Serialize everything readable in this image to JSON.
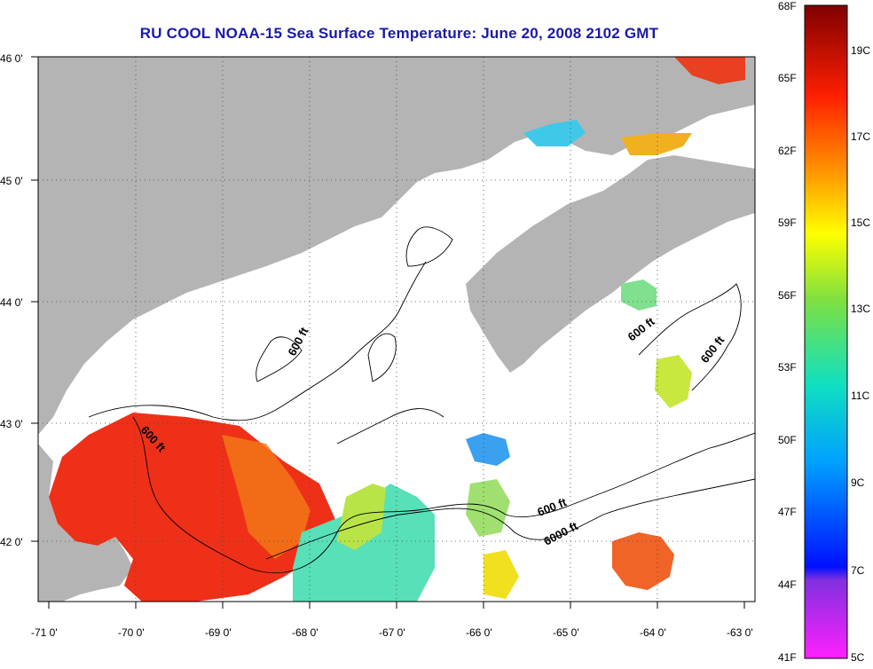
{
  "title": "RU COOL  NOAA-15  Sea Surface Temperature:  June 20, 2008 2102 GMT",
  "axes": {
    "lon_ticks": [
      "-71 0'",
      "-70 0'",
      "-69 0'",
      "-68 0'",
      "-67 0'",
      "-66 0'",
      "-65 0'",
      "-64 0'",
      "-63 0'"
    ],
    "lat_ticks": [
      "46 0'",
      "45 0'",
      "44 0'",
      "43 0'",
      "42 0'"
    ]
  },
  "contour_labels": {
    "c1": "600 ft",
    "c2": "600 ft",
    "c3": "600 ft",
    "c4": "600 ft",
    "c5": "600 ft",
    "c6": "6000 ft"
  },
  "colorbar": {
    "fahrenheit": [
      "68F",
      "65F",
      "62F",
      "59F",
      "56F",
      "53F",
      "50F",
      "47F",
      "44F",
      "41F"
    ],
    "celsius": [
      "19C",
      "17C",
      "15C",
      "13C",
      "11C",
      "9C",
      "7C",
      "5C"
    ]
  },
  "colors": {
    "land": "#b4b4b4",
    "warm_water": "#e8321e",
    "title": "#1a1aa8"
  }
}
